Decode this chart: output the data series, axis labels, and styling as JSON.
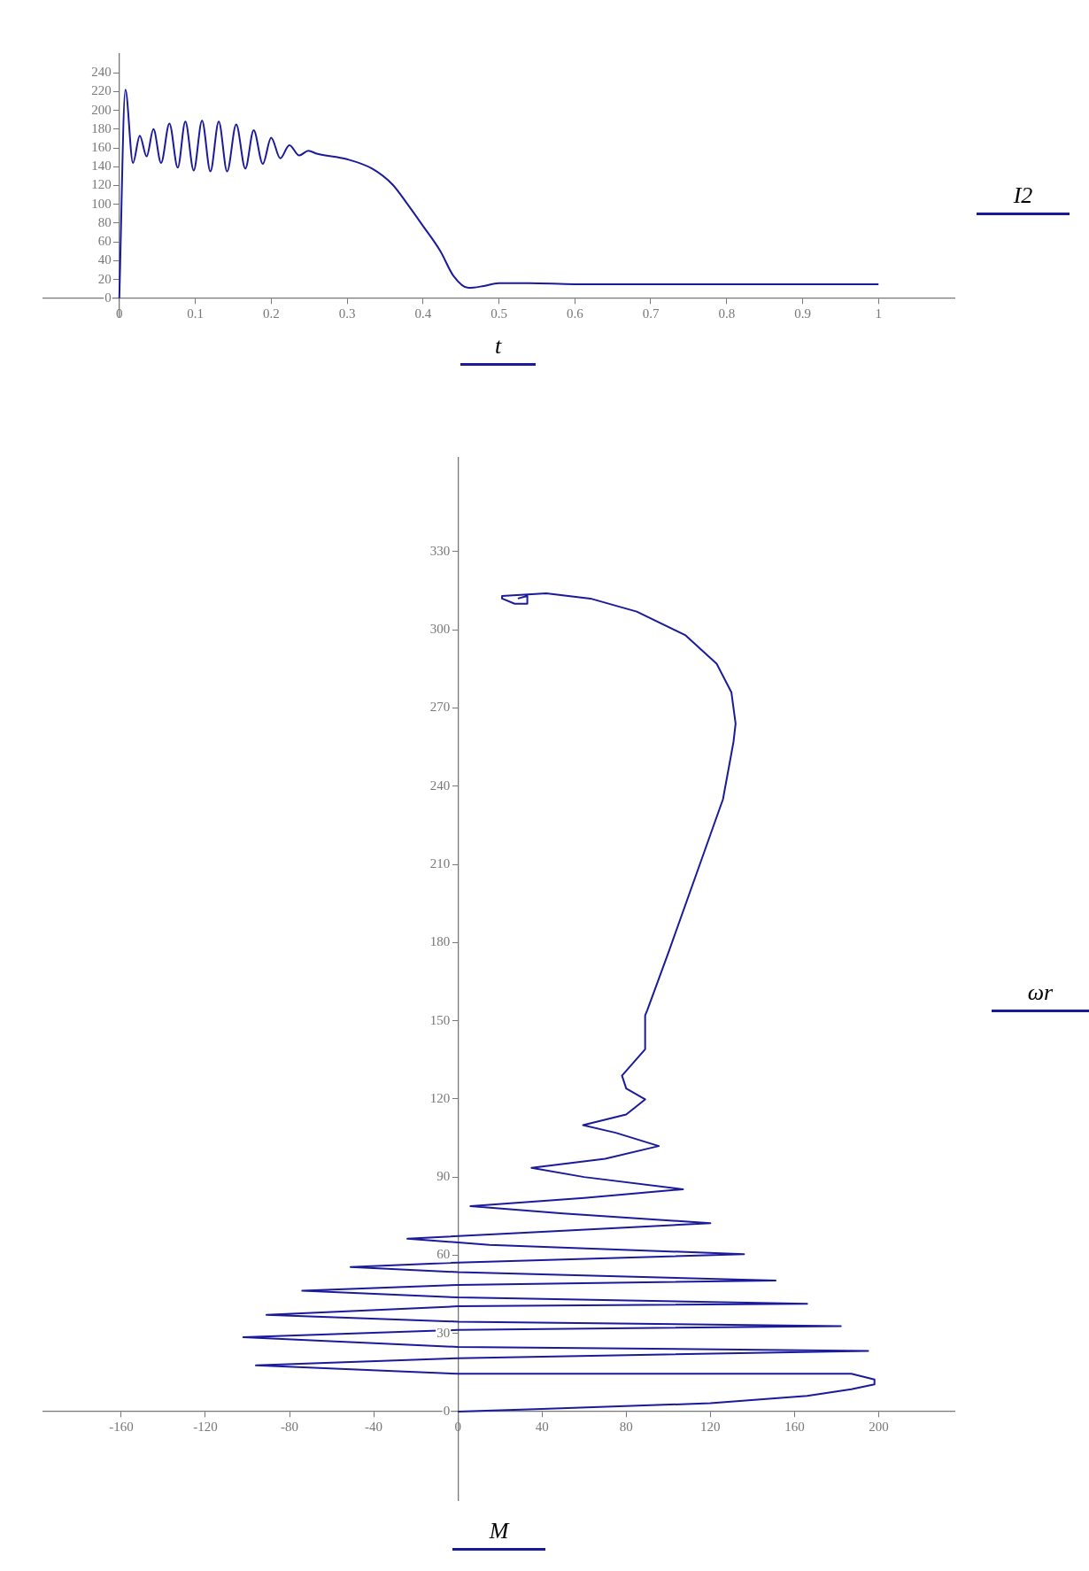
{
  "chart_data": [
    {
      "type": "line",
      "xlabel": "t",
      "ylabel": "I2",
      "xlim": [
        -0.1,
        1.1
      ],
      "ylim": [
        -20,
        260
      ],
      "xticks": [
        0,
        0.1,
        0.2,
        0.3,
        0.4,
        0.5,
        0.6,
        0.7,
        0.8,
        0.9,
        1
      ],
      "yticks": [
        0,
        20,
        40,
        60,
        80,
        100,
        120,
        140,
        160,
        180,
        200,
        220,
        240
      ],
      "grid": false,
      "series": [
        {
          "color": "#1a1a9a",
          "x": [
            0,
            0.008,
            0.018,
            0.027,
            0.036,
            0.045,
            0.055,
            0.066,
            0.077,
            0.087,
            0.098,
            0.109,
            0.12,
            0.131,
            0.142,
            0.154,
            0.166,
            0.177,
            0.189,
            0.2,
            0.212,
            0.224,
            0.237,
            0.249,
            0.26,
            0.3,
            0.333,
            0.36,
            0.378,
            0.4,
            0.423,
            0.44,
            0.46,
            0.48,
            0.5,
            0.54,
            0.6,
            1.0
          ],
          "values": [
            0,
            222,
            144,
            173,
            151,
            180,
            144,
            186,
            139,
            188,
            136,
            189,
            135,
            188,
            135,
            185,
            138,
            179,
            143,
            171,
            149,
            163,
            152,
            157,
            154,
            148,
            138,
            121,
            102,
            77,
            50,
            24,
            11,
            13,
            16,
            16,
            15,
            15
          ]
        }
      ]
    },
    {
      "type": "line",
      "xlabel": "M",
      "ylabel": "ωr",
      "xlim": [
        -197,
        236
      ],
      "ylim": [
        -34,
        366
      ],
      "xticks": [
        -160,
        -120,
        -80,
        -40,
        0,
        40,
        80,
        120,
        160,
        200
      ],
      "yticks": [
        0,
        30,
        60,
        90,
        120,
        150,
        180,
        210,
        240,
        270,
        300,
        330
      ],
      "grid": false,
      "series": [
        {
          "color": "#1a1a9a",
          "x": [
            0,
            40,
            120,
            166,
            187,
            198,
            198,
            187,
            0,
            -96,
            0,
            195,
            0,
            -102,
            0,
            182,
            0,
            -91,
            0,
            166,
            0,
            -74,
            0,
            151,
            0,
            -51,
            0,
            136,
            15,
            -24,
            40,
            120,
            50,
            6,
            60,
            107,
            60,
            35,
            70,
            95.5,
            75,
            59.5,
            80,
            89,
            80,
            78,
            89,
            89,
            90,
            100,
            115,
            126,
            131,
            132,
            130,
            123,
            108,
            85,
            63,
            42,
            21,
            21,
            27,
            33,
            33,
            28.5
          ],
          "values": [
            0,
            1,
            3.2,
            6,
            8.6,
            10.4,
            12.3,
            14.5,
            14.5,
            17.7,
            20.5,
            23.3,
            24.8,
            28.5,
            31.3,
            32.8,
            34.5,
            37.1,
            40.4,
            41.4,
            43.8,
            46.4,
            48.6,
            50.3,
            53.5,
            55.5,
            57.2,
            60.4,
            64,
            66.3,
            69,
            72.3,
            76,
            78.8,
            82,
            85.3,
            90,
            93.5,
            97,
            101.9,
            107,
            109.9,
            114,
            119.8,
            124,
            128.9,
            139,
            152,
            154,
            176,
            210,
            235,
            257,
            264,
            276,
            287,
            298,
            307,
            312,
            314,
            313,
            312,
            310,
            310,
            313,
            312
          ]
        }
      ]
    }
  ]
}
